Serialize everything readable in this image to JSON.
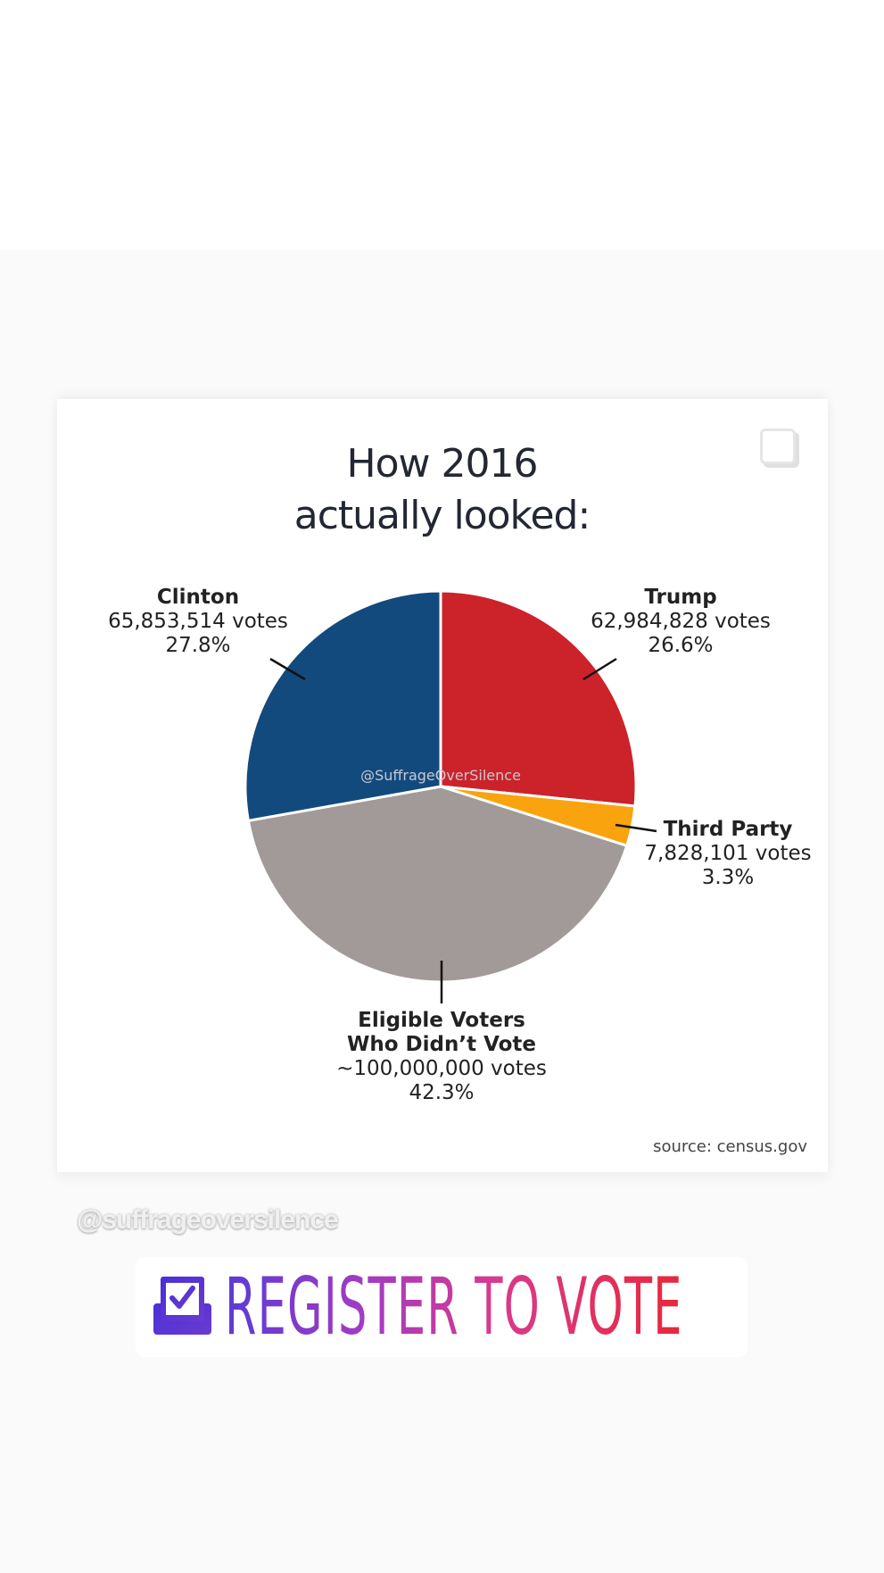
{
  "chart_data": {
    "type": "pie",
    "title_line1": "How 2016",
    "title_line2": "actually looked:",
    "slices": [
      {
        "name": "Trump",
        "votes": "62,984,828 votes",
        "percent_label": "26.6%",
        "value": 26.6,
        "color": "#cc2229"
      },
      {
        "name": "Third Party",
        "votes": "7,828,101 votes",
        "percent_label": "3.3%",
        "value": 3.3,
        "color": "#f9a30f"
      },
      {
        "name_line1": "Eligible Voters",
        "name_line2": "Who Didn’t Vote",
        "votes": "~100,000,000 votes",
        "percent_label": "42.3%",
        "value": 42.3,
        "color": "#a19a99"
      },
      {
        "name": "Clinton",
        "votes": "65,853,514 votes",
        "percent_label": "27.8%",
        "value": 27.8,
        "color": "#124a7e"
      }
    ],
    "start": "top",
    "direction": "clockwise",
    "watermark": "@SuffrageOverSilence",
    "source": "source: census.gov"
  },
  "overlay": {
    "handle": "@suffrageoversilence",
    "sticker_label": "REGISTER TO VOTE"
  }
}
